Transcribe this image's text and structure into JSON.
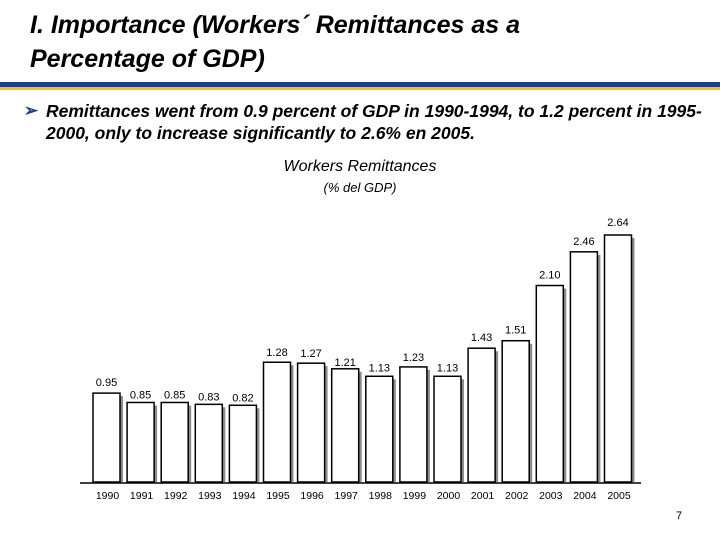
{
  "slide": {
    "title": "I. Importance (Workers´ Remittances as a Percentage of GDP)",
    "bullet_icon": "arrow-bullet-icon",
    "bullet": "Remittances went from 0.9 percent of GDP in 1990-1994, to 1.2 percent in 1995-2000, only to increase significantly to 2.6% en 2005.",
    "page_number": "7",
    "colors": {
      "rule_blue": "#1f3c8f",
      "rule_yellow": "#f2c500",
      "bar_fill": "#ffffff",
      "bar_outline": "#000000"
    }
  },
  "chart_data": {
    "type": "bar",
    "title": "Workers Remittances",
    "subtitle": "(% del GDP)",
    "xlabel": "",
    "ylabel": "",
    "categories": [
      "1990",
      "1991",
      "1992",
      "1993",
      "1994",
      "1995",
      "1996",
      "1997",
      "1998",
      "1999",
      "2000",
      "2001",
      "2002",
      "2003",
      "2004",
      "2005"
    ],
    "values": [
      0.95,
      0.85,
      0.85,
      0.83,
      0.82,
      1.28,
      1.27,
      1.21,
      1.13,
      1.23,
      1.13,
      1.43,
      1.51,
      2.1,
      2.46,
      2.64
    ],
    "value_labels": [
      "0.95",
      "0.85",
      "0.85",
      "0.83",
      "0.82",
      "1.28",
      "1.27",
      "1.21",
      "1.13",
      "1.23",
      "1.13",
      "1.43",
      "1.51",
      "2.10",
      "2.46",
      "2.64"
    ],
    "ylim": [
      0,
      2.64
    ],
    "grid": false,
    "legend": "none",
    "bar_style": "white fill with black outline and grey drop shadow"
  }
}
